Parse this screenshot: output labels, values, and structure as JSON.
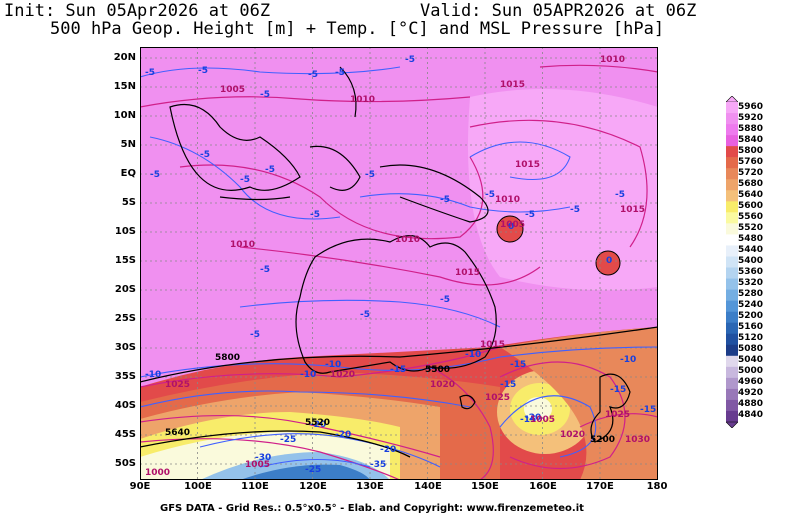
{
  "header": {
    "init": "Init: Sun 05Apr2026 at 06Z",
    "valid": "Valid: Sun 05APR2026 at 06Z",
    "subtitle": "500 hPa Geop. Height [m] + Temp. [°C] and MSL Pressure [hPa]"
  },
  "footer": "GFS DATA - Grid Res.: 0.5°x0.5° - Elab. and Copyright: www.firenzemeteo.it",
  "axes": {
    "lat": [
      "20N",
      "15N",
      "10N",
      "5N",
      "EQ",
      "5S",
      "10S",
      "15S",
      "20S",
      "25S",
      "30S",
      "35S",
      "40S",
      "45S",
      "50S"
    ],
    "lon": [
      "90E",
      "100E",
      "110E",
      "120E",
      "130E",
      "140E",
      "150E",
      "160E",
      "170E",
      "180"
    ]
  },
  "legend": {
    "levels": [
      "5960",
      "5920",
      "5880",
      "5840",
      "5800",
      "5760",
      "5720",
      "5680",
      "5640",
      "5600",
      "5560",
      "5520",
      "5480",
      "5440",
      "5400",
      "5360",
      "5320",
      "5280",
      "5240",
      "5200",
      "5160",
      "5120",
      "5080",
      "5040",
      "5000",
      "4960",
      "4920",
      "4880",
      "4840"
    ],
    "colors": [
      "#f7a8f7",
      "#f090f0",
      "#ee7aee",
      "#e860e0",
      "#e24a4a",
      "#e46a4a",
      "#e8885a",
      "#eea46a",
      "#f4c07a",
      "#f8ec6a",
      "#fafaa0",
      "#fafadc",
      "#ffffff",
      "#e8f0fa",
      "#d0e4f6",
      "#b4d4f0",
      "#94c2ea",
      "#74aee2",
      "#5496d8",
      "#3c7ec8",
      "#2a66b4",
      "#2050a0",
      "#1c3c88",
      "#e0d8ec",
      "#c8b8de",
      "#b098cc",
      "#9878b8",
      "#8058a4",
      "#683c90"
    ]
  },
  "map_labels": {
    "temps": [
      "-5",
      "-5",
      "-5",
      "-5",
      "-5",
      "-5",
      "-5",
      "-5",
      "-5",
      "-5",
      "-5",
      "-5",
      "-5",
      "-5",
      "-5",
      "-5",
      "-5",
      "-5",
      "-5",
      "-5",
      "-5",
      "-10",
      "-10",
      "-10",
      "-10",
      "-10",
      "-15",
      "-15",
      "-15",
      "-15",
      "-15",
      "-15",
      "-20",
      "-20",
      "-20",
      "-20",
      "-25",
      "-25",
      "-30",
      "-35",
      "0",
      "0"
    ],
    "pressures": [
      "1005",
      "1010",
      "1010",
      "1010",
      "1010",
      "1015",
      "1010",
      "1015",
      "1025",
      "1020",
      "1015",
      "1015",
      "1015",
      "1020",
      "1025",
      "1020",
      "1025",
      "1030",
      "1005",
      "1000",
      "1005",
      "1005"
    ],
    "heights": [
      "5800",
      "5500",
      "5520",
      "5640",
      "5200"
    ]
  }
}
